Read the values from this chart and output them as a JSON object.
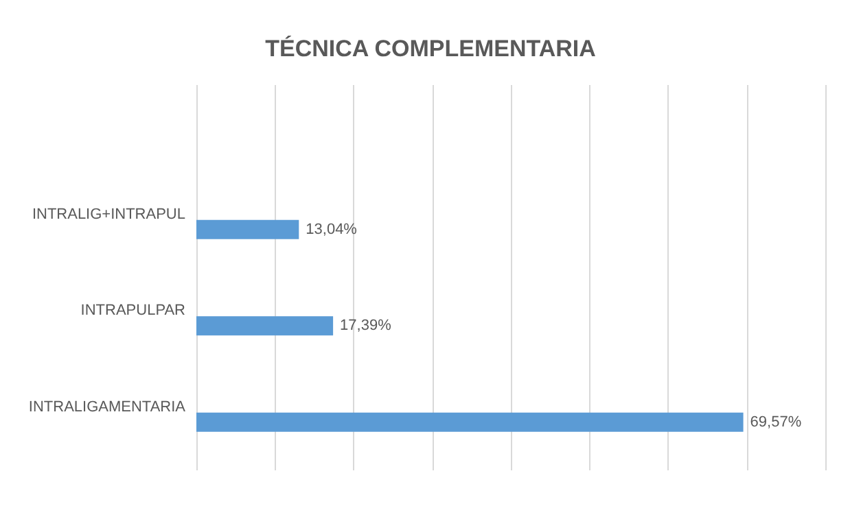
{
  "chart_data": {
    "type": "bar",
    "orientation": "horizontal",
    "title": "TÉCNICA COMPLEMENTARIA",
    "categories": [
      null,
      "INTRALIG+INTRAPUL",
      "INTRAPULPAR",
      "INTRALIGAMENTARIA"
    ],
    "values": [
      null,
      13.04,
      17.39,
      69.57
    ],
    "value_labels": [
      null,
      "13,04%",
      "17,39%",
      "69,57%"
    ],
    "color": "#5b9bd5",
    "xlim": [
      0,
      80
    ],
    "xticks": [
      {
        "value": 0,
        "label": null
      },
      {
        "value": 10,
        "label": null
      },
      {
        "value": 20,
        "label": null
      },
      {
        "value": 30,
        "label": null
      },
      {
        "value": 40,
        "label": null
      },
      {
        "value": 50,
        "label": null
      },
      {
        "value": 60,
        "label": null
      },
      {
        "value": 70,
        "label": null
      },
      {
        "value": 80,
        "label": null
      }
    ],
    "tick_labels": "y",
    "grid": "x"
  }
}
